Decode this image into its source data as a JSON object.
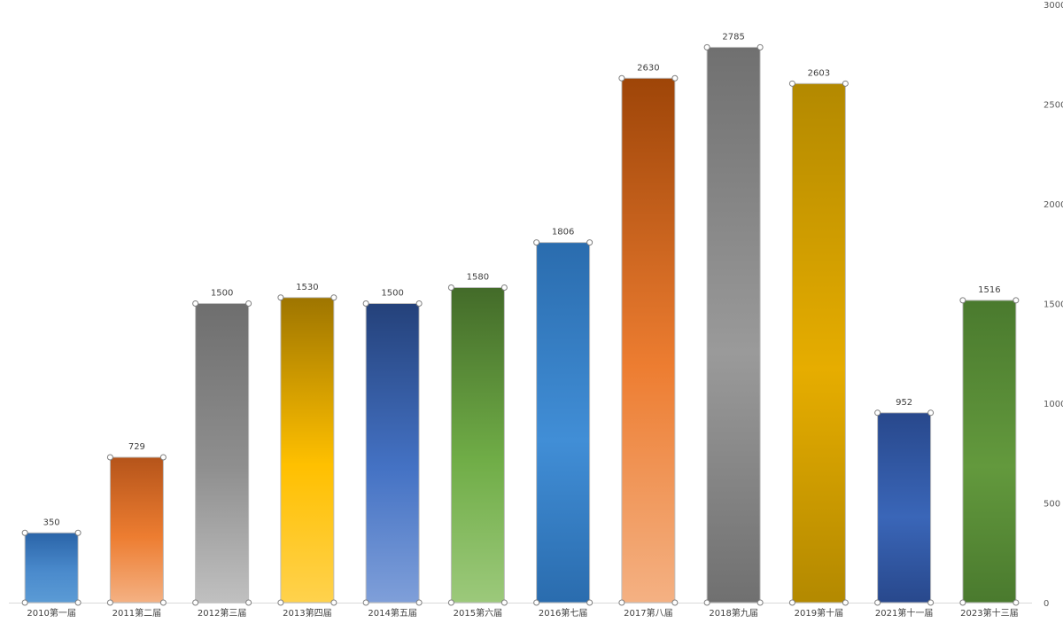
{
  "chart_data": {
    "type": "bar",
    "title": "",
    "xlabel": "",
    "ylabel": "",
    "ylim": [
      0,
      3000
    ],
    "yticks": [
      0,
      500,
      1000,
      1500,
      2000,
      2500,
      3000
    ],
    "y_axis_position": "right",
    "grid": false,
    "legend": "none",
    "categories": [
      "2010第一届",
      "2011第二届",
      "2012第三届",
      "2013第四届",
      "2014第五届",
      "2015第六届",
      "2016第七届",
      "2017第八届",
      "2018第九届",
      "2019第十届",
      "2021第十一届",
      "2023第十三届"
    ],
    "values": [
      350,
      729,
      1500,
      1530,
      1500,
      1580,
      1806,
      2630,
      2785,
      2603,
      952,
      1516
    ],
    "data_labels": [
      "350",
      "729",
      "1500",
      "1530",
      "1500",
      "1580",
      "1806",
      "2630",
      "2785",
      "2603",
      "952",
      "1516"
    ],
    "bar_colors": [
      [
        "#2a64a8",
        "#5b9bd5"
      ],
      [
        "#b5541a",
        "#f4b183"
      ],
      [
        "#6e6e6e",
        "#c0c0c0"
      ],
      [
        "#9e7500",
        "#ffd24d"
      ],
      [
        "#24417a",
        "#7f9fd9"
      ],
      [
        "#436b29",
        "#9cc97b"
      ],
      [
        "#2a6cae",
        "#2a6cae"
      ],
      [
        "#9e4508",
        "#f4b183"
      ],
      [
        "#707070",
        "#707070"
      ],
      [
        "#b38900",
        "#b38900"
      ],
      [
        "#28488c",
        "#28488c"
      ],
      [
        "#4a7a2e",
        "#4a7a2e"
      ]
    ],
    "bar_mid_colors": [
      "#4a8acc",
      "#ed7d31",
      "#8f8f8f",
      "#ffc000",
      "#4472c4",
      "#70ad47",
      "#418ed6",
      "#ed7d31",
      "#9a9a9a",
      "#e6ad00",
      "#3a66b8",
      "#63993d"
    ]
  }
}
